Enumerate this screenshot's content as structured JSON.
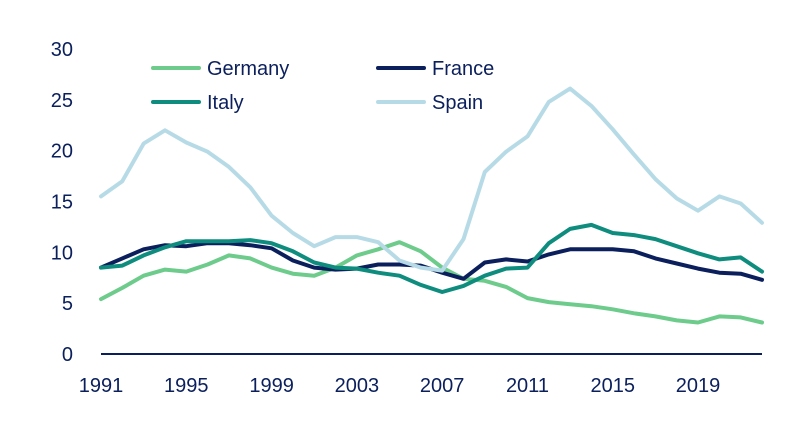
{
  "chart_data": {
    "type": "line",
    "title": "",
    "xlabel": "",
    "ylabel": "",
    "xlim": [
      1991,
      2022
    ],
    "ylim": [
      0,
      30
    ],
    "grid": false,
    "legend_position": "top-left",
    "x_ticks": [
      1991,
      1995,
      1999,
      2003,
      2007,
      2011,
      2015,
      2019
    ],
    "x_tick_labels": [
      "1991",
      "1995",
      "1999",
      "2003",
      "2007",
      "2011",
      "2015",
      "2019"
    ],
    "y_ticks": [
      0,
      5,
      10,
      15,
      20,
      25,
      30
    ],
    "y_tick_labels": [
      "0",
      "5",
      "10",
      "15",
      "20",
      "25",
      "30"
    ],
    "x": [
      1991,
      1992,
      1993,
      1994,
      1995,
      1996,
      1997,
      1998,
      1999,
      2000,
      2001,
      2002,
      2003,
      2004,
      2005,
      2006,
      2007,
      2008,
      2009,
      2010,
      2011,
      2012,
      2013,
      2014,
      2015,
      2016,
      2017,
      2018,
      2019,
      2020,
      2021,
      2022
    ],
    "series": [
      {
        "name": "Germany",
        "color": "#6DCB8B",
        "values": [
          5.4,
          6.5,
          7.7,
          8.3,
          8.1,
          8.8,
          9.7,
          9.4,
          8.5,
          7.9,
          7.7,
          8.5,
          9.7,
          10.3,
          11.0,
          10.1,
          8.5,
          7.4,
          7.2,
          6.6,
          5.5,
          5.1,
          4.9,
          4.7,
          4.4,
          4.0,
          3.7,
          3.3,
          3.1,
          3.7,
          3.6,
          3.1
        ]
      },
      {
        "name": "France",
        "color": "#0A1F5C",
        "values": [
          8.5,
          9.4,
          10.3,
          10.7,
          10.6,
          10.9,
          10.9,
          10.7,
          10.4,
          9.2,
          8.5,
          8.3,
          8.4,
          8.8,
          8.8,
          8.7,
          8.0,
          7.4,
          9.0,
          9.3,
          9.1,
          9.8,
          10.3,
          10.3,
          10.3,
          10.1,
          9.4,
          8.9,
          8.4,
          8.0,
          7.9,
          7.3
        ]
      },
      {
        "name": "Italy",
        "color": "#0E8C7E",
        "values": [
          8.5,
          8.7,
          9.7,
          10.5,
          11.1,
          11.1,
          11.1,
          11.2,
          10.9,
          10.1,
          9.0,
          8.5,
          8.4,
          8.0,
          7.7,
          6.8,
          6.1,
          6.7,
          7.7,
          8.4,
          8.5,
          10.9,
          12.3,
          12.7,
          11.9,
          11.7,
          11.3,
          10.6,
          9.9,
          9.3,
          9.5,
          8.1
        ]
      },
      {
        "name": "Spain",
        "color": "#B7DBE6",
        "values": [
          15.5,
          17.0,
          20.7,
          22.0,
          20.8,
          19.9,
          18.4,
          16.4,
          13.6,
          11.9,
          10.6,
          11.5,
          11.5,
          11.0,
          9.2,
          8.5,
          8.2,
          11.3,
          17.9,
          19.9,
          21.4,
          24.8,
          26.1,
          24.4,
          22.1,
          19.6,
          17.2,
          15.3,
          14.1,
          15.5,
          14.8,
          12.9
        ]
      }
    ]
  }
}
